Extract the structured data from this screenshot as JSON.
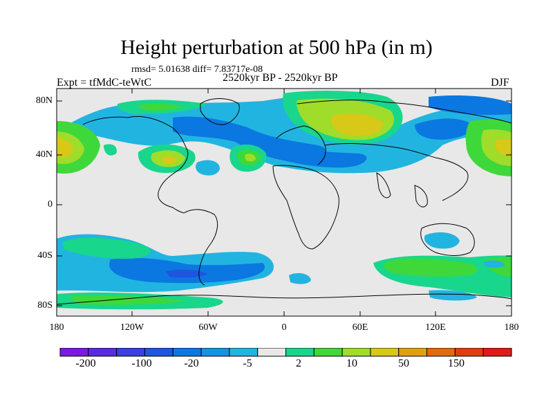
{
  "title": "Height perturbation at 500 hPa (in m)",
  "stats_line": "rmsd= 5.01638 diff= 7.83717e-08",
  "experiment_label": "Expt = tfMdC-teWtC",
  "period_label": "2520kyr BP - 2520kyr BP",
  "season_label": "DJF",
  "map": {
    "lat_ticks": [
      "80N",
      "40N",
      "0",
      "40S",
      "80S"
    ],
    "lon_ticks": [
      "180",
      "120W",
      "60W",
      "0",
      "60E",
      "120E",
      "180"
    ],
    "lat_range": [
      -90,
      90
    ],
    "lon_range": [
      -180,
      180
    ]
  },
  "colorbar": {
    "colors": [
      "#7a1ae0",
      "#5a2ae0",
      "#3a3fe0",
      "#1f55e0",
      "#0a78e0",
      "#1495e0",
      "#22b4e0",
      "#e8e8e8",
      "#18d68c",
      "#3ed83a",
      "#a0dc2a",
      "#d8c818",
      "#e0a010",
      "#e06a10",
      "#e03c10",
      "#e01a18"
    ],
    "labels": [
      "-200",
      "-100",
      "-20",
      "-5",
      "2",
      "10",
      "50",
      "150"
    ]
  }
}
